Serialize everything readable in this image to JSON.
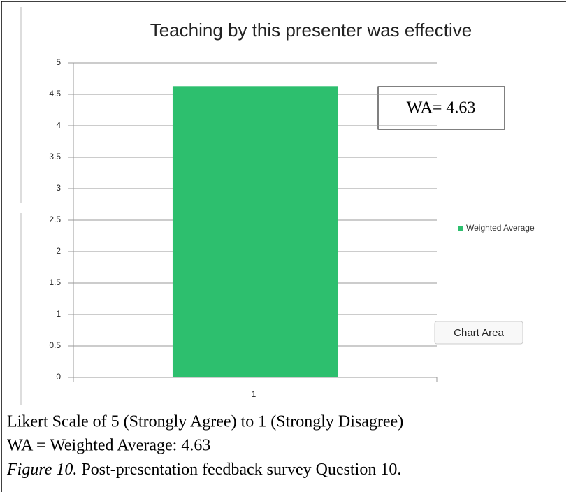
{
  "chart_data": {
    "type": "bar",
    "title": "Teaching by this presenter was effective",
    "categories": [
      "1"
    ],
    "series": [
      {
        "name": "Weighted Average",
        "color": "#2dbf6e",
        "values": [
          4.63
        ]
      }
    ],
    "ylim": [
      0,
      5
    ],
    "yticks": [
      0,
      0.5,
      1,
      1.5,
      2,
      2.5,
      3,
      3.5,
      4,
      4.5,
      5
    ],
    "grid": true,
    "legend": "right",
    "annotation": "WA= 4.63",
    "tooltip": "Chart Area"
  },
  "caption": {
    "lines": [
      "Likert Scale of 5 (Strongly Agree) to 1 (Strongly Disagree)",
      "WA = Weighted Average: 4.63"
    ],
    "figure_label": "Figure 10.",
    "figure_text": "Post-presentation feedback survey Question 10."
  }
}
